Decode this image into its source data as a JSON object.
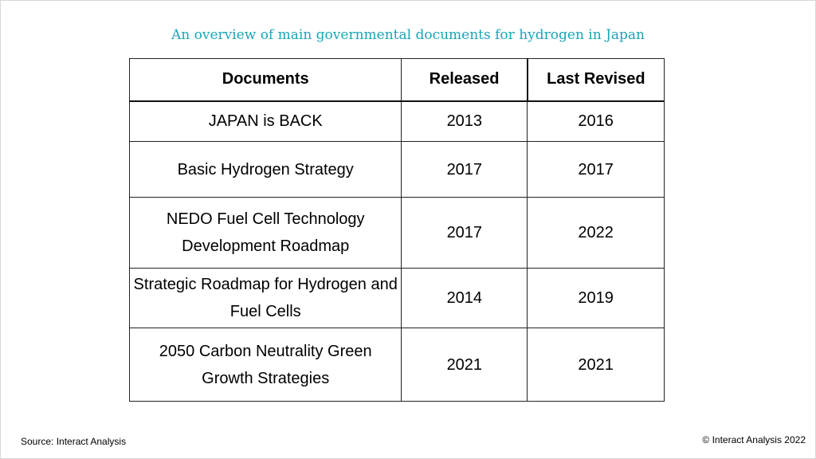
{
  "title": "An overview of main governmental documents for hydrogen in Japan",
  "table": {
    "headers": [
      "Documents",
      "Released",
      "Last Revised"
    ],
    "rows": [
      {
        "document": "JAPAN is BACK",
        "released": "2013",
        "last_revised": "2016"
      },
      {
        "document": "Basic Hydrogen Strategy",
        "released": "2017",
        "last_revised": "2017"
      },
      {
        "document": "NEDO Fuel Cell Technology Development Roadmap",
        "released": "2017",
        "last_revised": "2022"
      },
      {
        "document": "Strategic Roadmap for Hydrogen and Fuel Cells",
        "released": "2014",
        "last_revised": "2019"
      },
      {
        "document": "2050 Carbon Neutrality Green Growth Strategies",
        "released": "2021",
        "last_revised": "2021"
      }
    ]
  },
  "footer": {
    "source": "Source: Interact Analysis",
    "copyright": "© Interact Analysis 2022"
  },
  "colors": {
    "title": "#1aa5b8",
    "text": "#000000",
    "border": "#222222"
  }
}
